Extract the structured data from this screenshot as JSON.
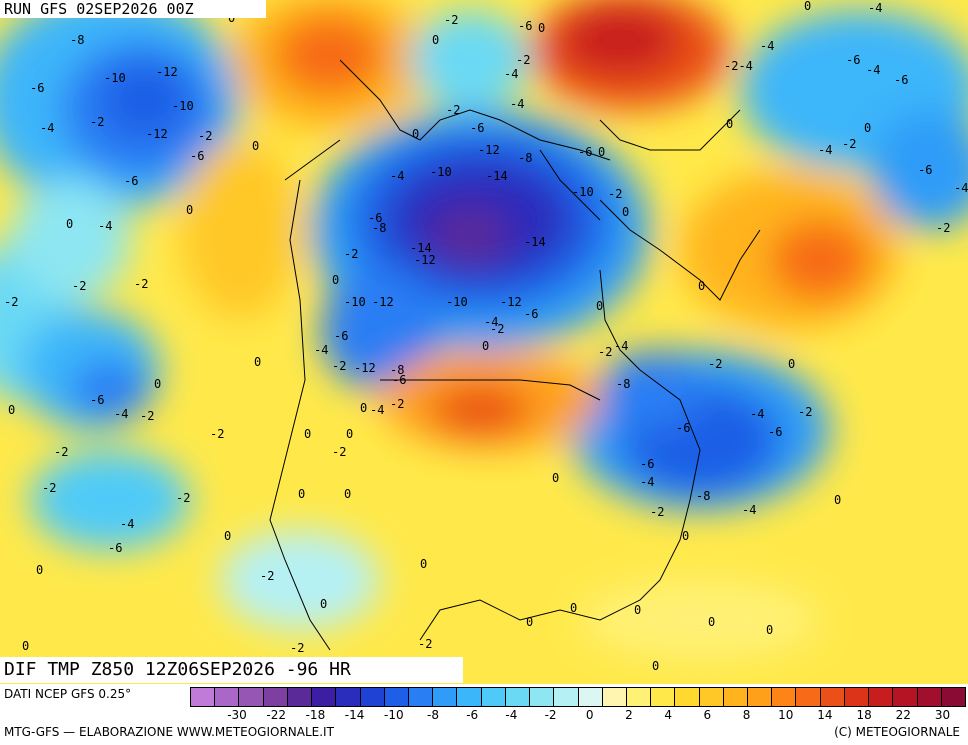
{
  "run_title": "RUN GFS 02SEP2026 00Z",
  "variable_title": "DIF TMP Z850 12Z06SEP2026 -96 HR",
  "data_source": "DATI NCEP GFS 0.25°",
  "credits_left": "MTG-GFS — ELABORAZIONE WWW.METEOGIORNALE.IT",
  "credits_right": "(C) METEOGIORNALE",
  "colorbar": {
    "colors": [
      "#c07ad8",
      "#a968c8",
      "#9656b4",
      "#7d3fa0",
      "#5a2a98",
      "#3b1ea4",
      "#2a2cbc",
      "#1f42d4",
      "#1f5ee6",
      "#2a7ef4",
      "#2f9cf8",
      "#3cb6fa",
      "#4fcaf8",
      "#6ad9f4",
      "#8de6f2",
      "#b5f0f4",
      "#dcf7f2",
      "#fff4b0",
      "#fff176",
      "#ffe94a",
      "#ffd92e",
      "#ffc826",
      "#ffb41f",
      "#ffa01b",
      "#ff8418",
      "#f76a17",
      "#ea5018",
      "#dc3419",
      "#c81d1e",
      "#b51424",
      "#a0102c",
      "#8a0c34"
    ],
    "labels": [
      "-30",
      "-22",
      "-18",
      "-14",
      "-10",
      "-8",
      "-6",
      "-4",
      "-2",
      "0",
      "2",
      "4",
      "6",
      "8",
      "10",
      "14",
      "18",
      "22",
      "30"
    ]
  },
  "map": {
    "legend_unit_note": "",
    "contour_labels": [
      "-8",
      "-6",
      "-10",
      "-12",
      "-10",
      "-4",
      "-2",
      "-12",
      "-2",
      "-6",
      "-6",
      "0",
      "-4",
      "0",
      "-2",
      "-2",
      "-4",
      "-2",
      "0",
      "-6",
      "0",
      "-2",
      "-6",
      "0",
      "-4",
      "-6",
      "-2",
      "-12",
      "-8",
      "-14",
      "-10",
      "-14",
      "-12",
      "-10",
      "-14",
      "-2",
      "0",
      "-6",
      "-8",
      "-2",
      "0",
      "-12",
      "-10",
      "-12",
      "-10",
      "-12",
      "-4",
      "-2",
      "-6",
      "-2",
      "-6",
      "0",
      "-4",
      "-2",
      "-12",
      "-8",
      "-6",
      "-4",
      "-2",
      "0",
      "-2",
      "0",
      "-6",
      "-4",
      "-2",
      "-2",
      "-2",
      "0",
      "0",
      "-4",
      "-2",
      "-2",
      "-6",
      "0",
      "0",
      "-8",
      "-4",
      "-2",
      "-4",
      "-6",
      "-6",
      "-6",
      "-4",
      "-8",
      "-2",
      "-4",
      "0",
      "-2",
      "0",
      "-2",
      "0",
      "0",
      "0",
      "-2",
      "0",
      "0",
      "-4",
      "-2",
      "-4",
      "-6",
      "-4",
      "-6",
      "-4",
      "0",
      "-2",
      "-6",
      "-4",
      "-2",
      "-2",
      "-4",
      "0",
      "0",
      "0",
      "0",
      "0",
      "0",
      "0",
      "0"
    ],
    "label_note": "Contour value labels as drawn on the map"
  }
}
